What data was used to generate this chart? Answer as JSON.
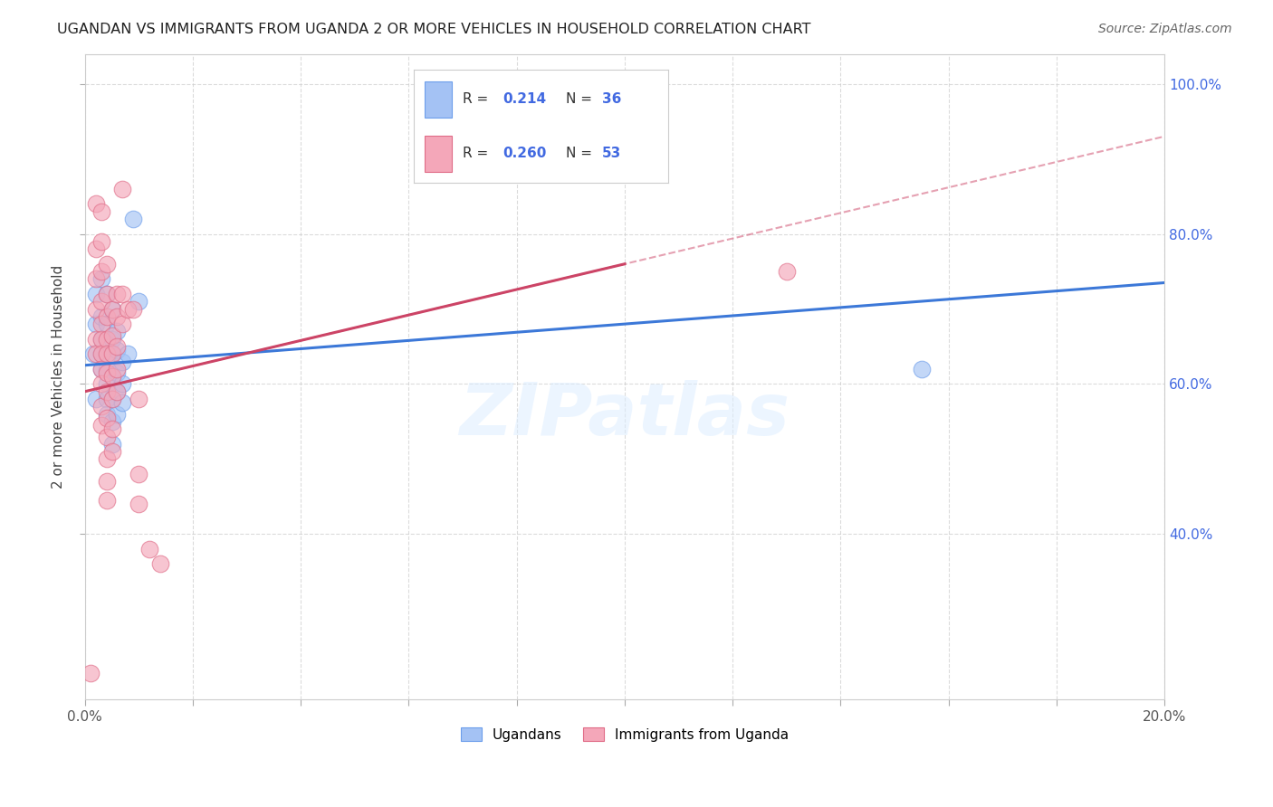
{
  "title": "UGANDAN VS IMMIGRANTS FROM UGANDA 2 OR MORE VEHICLES IN HOUSEHOLD CORRELATION CHART",
  "source": "Source: ZipAtlas.com",
  "ylabel": "2 or more Vehicles in Household",
  "xlim": [
    0.0,
    0.2
  ],
  "ylim": [
    0.18,
    1.04
  ],
  "xticks": [
    0.0,
    0.02,
    0.04,
    0.06,
    0.08,
    0.1,
    0.12,
    0.14,
    0.16,
    0.18,
    0.2
  ],
  "yticks": [
    0.4,
    0.6,
    0.8,
    1.0
  ],
  "ytick_labels": [
    "40.0%",
    "60.0%",
    "80.0%",
    "100.0%"
  ],
  "blue_color": "#a4c2f4",
  "pink_color": "#f4a7b9",
  "blue_edge_color": "#6d9eeb",
  "pink_edge_color": "#e06c87",
  "blue_line_color": "#3c78d8",
  "pink_line_color": "#cc4466",
  "axis_color": "#cccccc",
  "grid_color": "#cccccc",
  "tick_label_color": "#555555",
  "right_tick_color": "#4169e1",
  "legend_label1": "Ugandans",
  "legend_label2": "Immigrants from Uganda",
  "watermark": "ZIPatlas",
  "blue_scatter": [
    [
      0.0015,
      0.64
    ],
    [
      0.002,
      0.68
    ],
    [
      0.002,
      0.72
    ],
    [
      0.002,
      0.58
    ],
    [
      0.003,
      0.74
    ],
    [
      0.003,
      0.69
    ],
    [
      0.003,
      0.66
    ],
    [
      0.003,
      0.64
    ],
    [
      0.003,
      0.62
    ],
    [
      0.004,
      0.72
    ],
    [
      0.004,
      0.68
    ],
    [
      0.004,
      0.64
    ],
    [
      0.004,
      0.62
    ],
    [
      0.004,
      0.6
    ],
    [
      0.004,
      0.58
    ],
    [
      0.004,
      0.56
    ],
    [
      0.005,
      0.7
    ],
    [
      0.005,
      0.66
    ],
    [
      0.005,
      0.64
    ],
    [
      0.005,
      0.61
    ],
    [
      0.005,
      0.58
    ],
    [
      0.005,
      0.55
    ],
    [
      0.005,
      0.52
    ],
    [
      0.006,
      0.67
    ],
    [
      0.006,
      0.645
    ],
    [
      0.006,
      0.615
    ],
    [
      0.006,
      0.59
    ],
    [
      0.006,
      0.56
    ],
    [
      0.007,
      0.63
    ],
    [
      0.007,
      0.6
    ],
    [
      0.007,
      0.575
    ],
    [
      0.008,
      0.64
    ],
    [
      0.009,
      0.82
    ],
    [
      0.01,
      0.71
    ],
    [
      0.155,
      0.62
    ]
  ],
  "pink_scatter": [
    [
      0.001,
      0.215
    ],
    [
      0.002,
      0.84
    ],
    [
      0.002,
      0.78
    ],
    [
      0.002,
      0.74
    ],
    [
      0.002,
      0.7
    ],
    [
      0.002,
      0.66
    ],
    [
      0.002,
      0.64
    ],
    [
      0.003,
      0.83
    ],
    [
      0.003,
      0.79
    ],
    [
      0.003,
      0.75
    ],
    [
      0.003,
      0.71
    ],
    [
      0.003,
      0.68
    ],
    [
      0.003,
      0.66
    ],
    [
      0.003,
      0.64
    ],
    [
      0.003,
      0.62
    ],
    [
      0.003,
      0.6
    ],
    [
      0.003,
      0.57
    ],
    [
      0.003,
      0.545
    ],
    [
      0.004,
      0.76
    ],
    [
      0.004,
      0.72
    ],
    [
      0.004,
      0.69
    ],
    [
      0.004,
      0.66
    ],
    [
      0.004,
      0.64
    ],
    [
      0.004,
      0.615
    ],
    [
      0.004,
      0.59
    ],
    [
      0.004,
      0.555
    ],
    [
      0.004,
      0.53
    ],
    [
      0.004,
      0.5
    ],
    [
      0.004,
      0.47
    ],
    [
      0.004,
      0.445
    ],
    [
      0.005,
      0.7
    ],
    [
      0.005,
      0.665
    ],
    [
      0.005,
      0.64
    ],
    [
      0.005,
      0.61
    ],
    [
      0.005,
      0.58
    ],
    [
      0.005,
      0.54
    ],
    [
      0.005,
      0.51
    ],
    [
      0.006,
      0.72
    ],
    [
      0.006,
      0.69
    ],
    [
      0.006,
      0.65
    ],
    [
      0.006,
      0.62
    ],
    [
      0.006,
      0.59
    ],
    [
      0.007,
      0.86
    ],
    [
      0.007,
      0.72
    ],
    [
      0.007,
      0.68
    ],
    [
      0.008,
      0.7
    ],
    [
      0.009,
      0.7
    ],
    [
      0.01,
      0.58
    ],
    [
      0.01,
      0.48
    ],
    [
      0.01,
      0.44
    ],
    [
      0.012,
      0.38
    ],
    [
      0.014,
      0.36
    ],
    [
      0.13,
      0.75
    ]
  ],
  "blue_line": [
    [
      0.0,
      0.625
    ],
    [
      0.2,
      0.735
    ]
  ],
  "pink_line_solid": [
    [
      0.0,
      0.59
    ],
    [
      0.1,
      0.76
    ]
  ],
  "pink_line_dashed": [
    [
      0.0,
      0.59
    ],
    [
      0.2,
      0.93
    ]
  ]
}
